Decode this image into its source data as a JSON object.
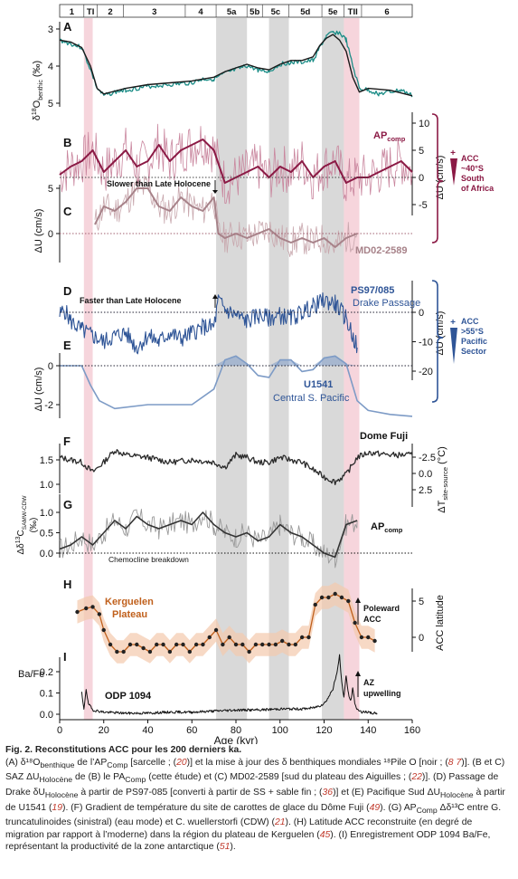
{
  "stages": [
    {
      "label": "1",
      "from": 0,
      "to": 11
    },
    {
      "label": "TI",
      "from": 11,
      "to": 17
    },
    {
      "label": "2",
      "from": 17,
      "to": 29
    },
    {
      "label": "3",
      "from": 29,
      "to": 57
    },
    {
      "label": "4",
      "from": 57,
      "to": 71
    },
    {
      "label": "5a",
      "from": 71,
      "to": 85
    },
    {
      "label": "5b",
      "from": 85,
      "to": 92
    },
    {
      "label": "5c",
      "from": 92,
      "to": 104
    },
    {
      "label": "5d",
      "from": 104,
      "to": 119
    },
    {
      "label": "5e",
      "from": 119,
      "to": 129
    },
    {
      "label": "TII",
      "from": 129,
      "to": 137
    },
    {
      "label": "6",
      "from": 137,
      "to": 160
    }
  ],
  "shading": {
    "gray": [
      [
        71,
        85
      ],
      [
        95,
        104
      ],
      [
        119,
        129
      ]
    ],
    "pink": [
      [
        11,
        15
      ],
      [
        129,
        136
      ]
    ],
    "gray_color": "#d9d9d9",
    "pink_color": "#f6d5dc"
  },
  "colors": {
    "teal": "#1a8c86",
    "maroon": "#8b1a45",
    "maroon_light": "#c9869e",
    "mauve": "#a78289",
    "blue": "#2f5597",
    "blue_light": "#7d9bc6",
    "orange": "#c0601c",
    "black": "#1a1a1a"
  },
  "panel_letters": [
    "A",
    "B",
    "C",
    "D",
    "E",
    "F",
    "G",
    "H",
    "I"
  ],
  "x_axis": {
    "label": "Age (kyr)",
    "ticks": [
      0,
      20,
      40,
      60,
      80,
      100,
      120,
      140,
      160
    ]
  },
  "axis_labels": {
    "a_main": "δ",
    "a_sup": "18",
    "a_rest": "O",
    "a_sub": "benthic",
    "a_unit": " (‰)",
    "bc_right": "ΔU (cm/s)",
    "c_left": "ΔU (cm/s)",
    "de_right": "ΔU (cm/s)",
    "e_left": "ΔU (cm/s)",
    "f_right_main": "ΔT",
    "f_right_sub": "site-source",
    "f_right_unit": " (°C)",
    "g_left_main": "Δδ",
    "g_left_sup": "13",
    "g_left_c": "C",
    "g_left_sub": "SAMW-CDW",
    "g_left_unit": "(‰)",
    "h_right": "ACC latitude",
    "i_left": "Ba/Fe"
  },
  "ticks": {
    "a": [
      "3",
      "4",
      "5"
    ],
    "bc_right": [
      "10",
      "5",
      "0",
      "-5"
    ],
    "c_left": [
      "5",
      "0"
    ],
    "de_right": [
      "0",
      "-10",
      "-20"
    ],
    "e_left": [
      "0",
      "-2"
    ],
    "f_right": [
      "-2.5",
      "0.0",
      "2.5"
    ],
    "g_left": [
      "1.5",
      "1.0",
      "0.5",
      "0.0"
    ],
    "h_right": [
      "5",
      "0"
    ],
    "i_left": [
      "0.2",
      "0.1",
      "0.0"
    ]
  },
  "labels": {
    "ap_comp": "AP",
    "comp_sub": "comp",
    "slower": "Slower than Late Holocene",
    "md": "MD02-2589",
    "faster": "Faster than Late Holocene",
    "ps": "PS97/085",
    "drake": "Drake Passage",
    "u1541": "U1541",
    "centralsp": "Central S. Pacific",
    "dome": "Dome Fuji",
    "chemocline": "Chemocline breakdown",
    "kerg1": "Kerguelen",
    "kerg2": "Plateau",
    "poleward1": "Poleward",
    "poleward2": "ACC",
    "odp": "ODP 1094",
    "az1": "AZ",
    "az2": "upwelling",
    "acc40_1": "ACC",
    "acc40_2": "~40°S",
    "acc40_3": "South",
    "acc40_4": "of Africa",
    "acc55_1": "ACC",
    "acc55_2": ">55°S",
    "acc55_3": "Pacific",
    "acc55_4": "Sector"
  },
  "caption": {
    "title": "Fig. 2. Reconstitutions ACC pour les 200 derniers ka.",
    "a1": "(A) δ¹⁸O",
    "a1sub": "benthique",
    "a2": " de l’AP",
    "a2sub": "Comp",
    "a3": " [sarcelle ; (",
    "r20": "20",
    "a4": ")] et la mise à jour des δ benthiques mondiales ",
    "a5": "¹⁸Pile O [noir ; (",
    "r8": "8",
    "a6": " ",
    "r7": "7",
    "a7": ")]. (B et C) SAZ ΔU",
    "a7sub": "Holocène",
    "a8": " de (B) le PA",
    "a8sub": "Comp",
    "a9": " (cette étude) et (C) MD02-2589 [sud du plateau des Aiguilles ; (",
    "r22": "22",
    "a10": ")]. (D) Passage de Drake δU",
    "a10sub": "Holocène",
    "a11": " à partir de PS97-085 [converti à partir de SS + sable fin ; (",
    "r36": "36",
    "a12": ")] et (E) Pacifique Sud ΔU",
    "a12sub": "Holocène",
    "a13": " à partir de U1541 (",
    "r19": "19",
    "a14": "). (F) Gradient de température du site de carottes de glace du Dôme Fuji (",
    "r49": "49",
    "a15": "). (G) AP",
    "a15sub": "Comp",
    "a16": " Δδ¹³C entre G. truncatulinoides (sinistral) (eau mode) et C. wuellerstorfi (CDW) (",
    "r21": "21",
    "a17": "). (H) Latitude ACC reconstruite (en degré de migration par rapport à l’moderne) dans la région du plateau de Kerguelen (",
    "r45": "45",
    "a18": "). (I) Enregistrement ODP 1094 Ba/Fe, représentant la productivité de la zone antarctique (",
    "r51": "51",
    "a19": ")."
  },
  "chart_data": [
    {
      "type": "line",
      "panel": "A",
      "ylim": [
        5,
        2.8
      ],
      "series": [
        {
          "name": "",
          "color": "#1a8c86",
          "x": [
            0,
            5,
            10,
            14,
            17,
            20,
            25,
            30,
            40,
            50,
            60,
            65,
            70,
            75,
            80,
            85,
            90,
            95,
            100,
            105,
            110,
            115,
            118,
            121,
            124,
            127,
            130,
            133,
            136,
            140,
            145,
            150,
            155,
            160
          ],
          "y": [
            3.3,
            3.4,
            3.5,
            4.1,
            4.6,
            4.8,
            4.7,
            4.65,
            4.55,
            4.5,
            4.45,
            4.35,
            4.35,
            4.2,
            4.1,
            4.0,
            4.1,
            4.15,
            3.95,
            3.9,
            3.9,
            3.85,
            3.5,
            3.2,
            3.1,
            3.1,
            3.3,
            4.0,
            4.6,
            4.65,
            4.75,
            4.7,
            4.65,
            4.8
          ]
        },
        {
          "name": "",
          "color": "#1a1a1a",
          "x": [
            0,
            5,
            10,
            14,
            17,
            20,
            30,
            40,
            50,
            60,
            65,
            70,
            75,
            80,
            85,
            90,
            95,
            100,
            105,
            110,
            115,
            118,
            121,
            124,
            127,
            130,
            133,
            136,
            140,
            150,
            160
          ],
          "y": [
            3.3,
            3.35,
            3.5,
            4.0,
            4.6,
            4.75,
            4.6,
            4.5,
            4.45,
            4.4,
            4.35,
            4.3,
            4.15,
            4.05,
            3.95,
            4.05,
            4.1,
            3.95,
            3.85,
            3.85,
            3.75,
            3.45,
            3.25,
            3.15,
            3.3,
            3.6,
            4.3,
            4.7,
            4.6,
            4.65,
            4.8
          ]
        }
      ]
    },
    {
      "type": "line",
      "panel": "B",
      "ylim": [
        -5,
        10
      ],
      "series": [
        {
          "name": "AP",
          "color": "#8b1a45",
          "x": [
            0,
            5,
            10,
            15,
            20,
            25,
            30,
            35,
            40,
            45,
            50,
            55,
            60,
            65,
            70,
            75,
            80,
            85,
            90,
            95,
            100,
            105,
            110,
            115,
            120,
            125,
            130,
            135,
            140,
            145,
            150,
            155,
            160
          ],
          "y": [
            0.5,
            2,
            3,
            5,
            1,
            3,
            5,
            2,
            3,
            6,
            3,
            5,
            6,
            7,
            5,
            -1,
            0,
            1,
            2,
            0,
            2,
            1,
            3,
            0,
            2,
            3,
            -1,
            0,
            0,
            1,
            2,
            3,
            1
          ]
        }
      ]
    },
    {
      "type": "line",
      "panel": "C",
      "ylim": [
        -2,
        7
      ],
      "series": [
        {
          "name": "MD02-2589",
          "color": "#a78289",
          "x": [
            16,
            20,
            25,
            30,
            35,
            40,
            45,
            50,
            55,
            60,
            65,
            70,
            72,
            75,
            80,
            85,
            90,
            95,
            100,
            105,
            110,
            115,
            120,
            125,
            130,
            135
          ],
          "y": [
            1,
            3,
            2.5,
            3.5,
            5,
            5,
            3,
            2.5,
            4,
            3,
            2.5,
            4,
            0,
            -0.5,
            0,
            -0.5,
            0,
            0.5,
            -0.5,
            -1,
            -0.5,
            -1,
            -0.5,
            -1.5,
            -0.5,
            0
          ]
        }
      ]
    },
    {
      "type": "line",
      "panel": "D",
      "ylim": [
        -22,
        8
      ],
      "series": [
        {
          "name": "PS97/085",
          "color": "#2f5597",
          "x": [
            0,
            2,
            5,
            10,
            15,
            20,
            25,
            30,
            35,
            40,
            45,
            50,
            55,
            60,
            65,
            70,
            72,
            75,
            80,
            85,
            90,
            95,
            100,
            105,
            110,
            115,
            120,
            125,
            130,
            135
          ],
          "y": [
            -1,
            1,
            -3,
            -6,
            -8,
            -10,
            -8,
            -7,
            -12,
            -8,
            -10,
            -7,
            -9,
            -7,
            -5,
            -5,
            4,
            1,
            -1,
            -3,
            -1,
            -2,
            -1,
            -2,
            0,
            2,
            4,
            3,
            -2,
            -12
          ]
        }
      ]
    },
    {
      "type": "line",
      "panel": "E",
      "ylim": [
        -3,
        1
      ],
      "series": [
        {
          "name": "U1541",
          "color": "#2f5597",
          "x": [
            0,
            5,
            10,
            14,
            18,
            25,
            40,
            60,
            70,
            75,
            80,
            85,
            90,
            95,
            100,
            105,
            110,
            115,
            120,
            125,
            130,
            135,
            140,
            150,
            160
          ],
          "y": [
            0,
            0,
            0,
            -1,
            -1.8,
            -2.2,
            -2.0,
            -2.0,
            -1.2,
            0.3,
            0.5,
            0.1,
            -0.5,
            -0.6,
            0.3,
            0.3,
            -0.3,
            -0.2,
            0.4,
            0.5,
            0.1,
            -1.8,
            -2.3,
            -2.5,
            -2.6
          ]
        }
      ]
    },
    {
      "type": "line",
      "panel": "F",
      "ylim": [
        0.9,
        1.9
      ],
      "series": [
        {
          "name": "Dome Fuji",
          "color": "#1a1a1a",
          "x": [
            0,
            5,
            10,
            15,
            20,
            25,
            30,
            40,
            50,
            60,
            70,
            75,
            80,
            85,
            90,
            95,
            100,
            105,
            110,
            115,
            120,
            125,
            130,
            135,
            140,
            150,
            160
          ],
          "y": [
            1.55,
            1.5,
            1.45,
            1.25,
            1.45,
            1.7,
            1.6,
            1.55,
            1.45,
            1.5,
            1.45,
            1.35,
            1.6,
            1.55,
            1.45,
            1.45,
            1.55,
            1.5,
            1.45,
            1.3,
            1.15,
            1.05,
            1.2,
            1.55,
            1.65,
            1.6,
            1.6
          ]
        }
      ]
    },
    {
      "type": "line",
      "panel": "G",
      "ylim": [
        -0.2,
        1.7
      ],
      "series": [
        {
          "name": "AP",
          "color": "#555555",
          "x": [
            0,
            5,
            10,
            15,
            20,
            25,
            30,
            35,
            40,
            45,
            50,
            55,
            60,
            65,
            70,
            75,
            80,
            85,
            90,
            95,
            100,
            105,
            110,
            115,
            120,
            125,
            130,
            135
          ],
          "y": [
            0.1,
            0.2,
            0.4,
            0.2,
            0.5,
            0.8,
            0.6,
            0.9,
            0.7,
            0.6,
            0.7,
            0.8,
            0.7,
            1.0,
            0.7,
            0.5,
            0.4,
            0.5,
            0.3,
            0.4,
            0.7,
            0.5,
            0.4,
            0.2,
            0.0,
            -0.1,
            0.7,
            0.8
          ]
        }
      ]
    },
    {
      "type": "line",
      "panel": "H",
      "ylim": [
        -3,
        7
      ],
      "series": [
        {
          "name": "Kerguelen Plateau",
          "color": "#c0601c",
          "x": [
            8,
            12,
            15,
            18,
            20,
            23,
            26,
            29,
            32,
            35,
            38,
            41,
            44,
            47,
            50,
            53,
            56,
            59,
            62,
            65,
            68,
            71,
            74,
            77,
            80,
            83,
            86,
            89,
            92,
            95,
            98,
            101,
            104,
            107,
            110,
            113,
            116,
            119,
            122,
            125,
            128,
            131,
            134,
            137,
            140,
            143
          ],
          "y": [
            3.5,
            4,
            4.2,
            3.2,
            1,
            -1,
            -2,
            -2,
            -1,
            -1,
            -1.5,
            -2,
            -1,
            -1,
            -2,
            -1,
            -1,
            -2,
            -1,
            -1,
            0,
            1,
            -1,
            0,
            -1,
            -1,
            -2,
            -1,
            -1,
            -1,
            -1,
            -0.5,
            -1,
            -1,
            0,
            0,
            4.5,
            5.5,
            5.5,
            6,
            5.5,
            5,
            2,
            0,
            0,
            -0.5
          ]
        }
      ]
    },
    {
      "type": "line",
      "panel": "I",
      "ylim": [
        0,
        0.3
      ],
      "series": [
        {
          "name": "ODP 1094",
          "color": "#1a1a1a",
          "x": [
            10,
            11,
            12,
            13,
            15,
            20,
            30,
            40,
            50,
            60,
            70,
            80,
            90,
            100,
            110,
            115,
            118,
            120,
            122,
            124,
            126,
            127,
            128,
            129,
            130,
            131,
            132,
            133,
            134,
            135,
            136,
            137,
            138,
            139,
            140,
            141,
            142,
            143,
            144
          ],
          "y": [
            0.1,
            0.02,
            0.12,
            0.05,
            0.02,
            0.01,
            0.005,
            0.005,
            0.01,
            0.01,
            0.015,
            0.02,
            0.02,
            0.025,
            0.025,
            0.03,
            0.04,
            0.05,
            0.08,
            0.12,
            0.2,
            0.28,
            0.15,
            0.08,
            0.18,
            0.1,
            0.06,
            0.12,
            0.05,
            0.02,
            0.02,
            0.01,
            0.01,
            0.01,
            0.01,
            0.005,
            0.005,
            0.005,
            0.005
          ]
        }
      ]
    }
  ]
}
